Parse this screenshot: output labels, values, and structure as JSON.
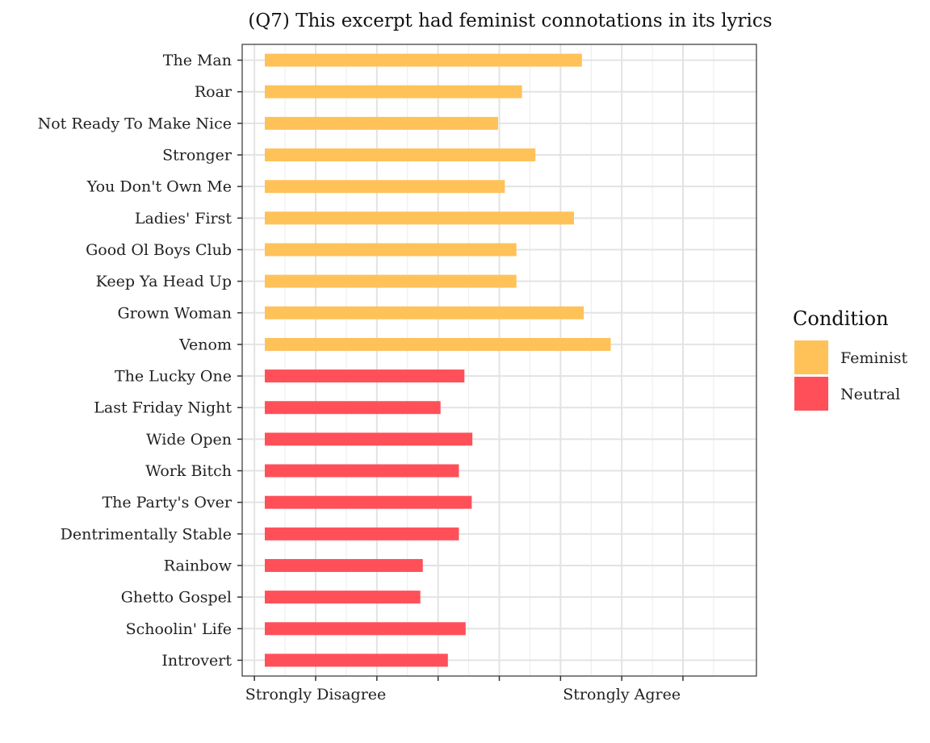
{
  "chart_data": {
    "type": "bar",
    "orientation": "horizontal",
    "title": "(Q7) This excerpt had feminist connotations in its lyrics",
    "xlabel": "",
    "ylabel": "",
    "xlim": [
      0.8,
      9.2
    ],
    "x_ticks": [
      1,
      2,
      3,
      4,
      5,
      6,
      7,
      8
    ],
    "x_tick_labels": [
      "",
      "Strongly Disagree",
      "",
      "",
      "",
      "",
      "Strongly Agree",
      ""
    ],
    "grid": true,
    "legend": {
      "title": "Condition",
      "position": "right",
      "entries": [
        {
          "name": "Feminist",
          "color": "#FFC259"
        },
        {
          "name": "Neutral",
          "color": "#FF5059"
        }
      ]
    },
    "categories": [
      "The Man",
      "Roar",
      "Not Ready To Make Nice",
      "Stronger",
      "You Don't Own Me",
      "Ladies' First",
      "Good Ol Boys Club",
      "Keep Ya Head Up",
      "Grown Woman",
      "Venom",
      "The Lucky One",
      "Last Friday Night",
      "Wide Open",
      "Work Bitch",
      "The Party's Over",
      "Dentrimentally Stable",
      "Rainbow",
      "Ghetto Gospel",
      "Schoolin' Life",
      "Introvert"
    ],
    "conditions": [
      "Feminist",
      "Feminist",
      "Feminist",
      "Feminist",
      "Feminist",
      "Feminist",
      "Feminist",
      "Feminist",
      "Feminist",
      "Feminist",
      "Neutral",
      "Neutral",
      "Neutral",
      "Neutral",
      "Neutral",
      "Neutral",
      "Neutral",
      "Neutral",
      "Neutral",
      "Neutral"
    ],
    "values": [
      6.35,
      5.37,
      4.98,
      5.59,
      5.09,
      6.22,
      5.28,
      5.28,
      6.38,
      6.82,
      4.43,
      4.04,
      4.56,
      4.34,
      4.55,
      4.34,
      3.75,
      3.71,
      4.45,
      4.16
    ]
  }
}
